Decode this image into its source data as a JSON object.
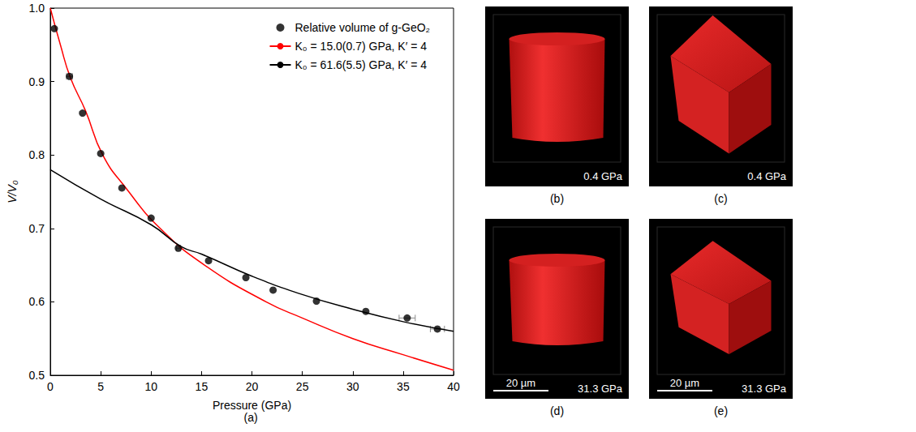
{
  "chart_data": {
    "type": "scatter",
    "panel_label": "(a)",
    "x_label": "Pressure (GPa)",
    "y_label": "V/V₀",
    "xlim": [
      0,
      40
    ],
    "ylim": [
      0.5,
      1.0
    ],
    "xticks": [
      0,
      5,
      10,
      15,
      20,
      25,
      30,
      35,
      40
    ],
    "yticks": [
      0.5,
      0.6,
      0.7,
      0.8,
      0.9,
      {
        "value": 1.0,
        "label": "1.0"
      }
    ],
    "legend": "upper right",
    "grid": false,
    "series": [
      {
        "name": "Relative volume of g-GeO₂",
        "type": "scatter",
        "marker": "circle",
        "color": "#000000",
        "x": [
          0.4,
          1.9,
          3.2,
          5.0,
          7.1,
          10.0,
          12.7,
          15.7,
          19.4,
          22.1,
          26.4,
          31.3,
          35.4,
          38.4
        ],
        "values": [
          0.972,
          0.907,
          0.857,
          0.802,
          0.755,
          0.714,
          0.673,
          0.656,
          0.633,
          0.616,
          0.601,
          0.587,
          0.578,
          0.563
        ],
        "x_err": [
          null,
          0.3,
          null,
          null,
          null,
          null,
          0.2,
          null,
          null,
          null,
          null,
          null,
          0.8,
          0.7
        ]
      },
      {
        "name": "K₀ = 15.0(0.7) GPa, K′ = 4",
        "type": "line",
        "line_style": "solid",
        "color": "#ff0000",
        "x": [
          0,
          1,
          2,
          3.5,
          5.2,
          7.5,
          10.9,
          15.3,
          21.4,
          25,
          30,
          35,
          40
        ],
        "values": [
          1.0,
          0.95,
          0.905,
          0.86,
          0.8,
          0.755,
          0.7,
          0.65,
          0.6,
          0.578,
          0.55,
          0.528,
          0.507
        ]
      },
      {
        "name": "K₀ = 61.6(5.5) GPa, K′ = 4",
        "type": "line",
        "line_style": "solid",
        "color": "#000000",
        "x": [
          0,
          5,
          10,
          13,
          15,
          20,
          25,
          30,
          35,
          40
        ],
        "values": [
          0.78,
          0.74,
          0.705,
          0.675,
          0.665,
          0.635,
          0.61,
          0.59,
          0.573,
          0.56
        ]
      }
    ]
  },
  "panels": [
    {
      "label": "(b)",
      "pressure": "0.4 GPa"
    },
    {
      "label": "(c)",
      "pressure": "0.4 GPa"
    },
    {
      "label": "(d)",
      "pressure": "31.3 GPa",
      "scale_bar": "20 µm"
    },
    {
      "label": "(e)",
      "pressure": "31.3 GPa",
      "scale_bar": "20 µm"
    }
  ]
}
